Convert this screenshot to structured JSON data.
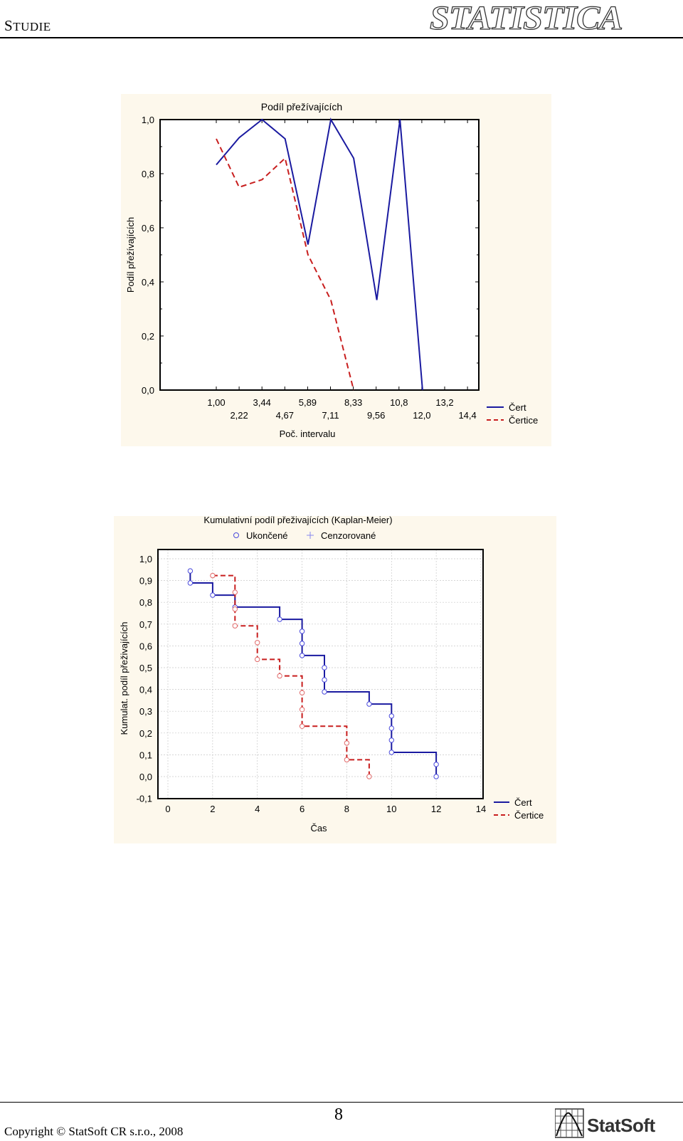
{
  "header": {
    "title_first": "S",
    "title_rest": "TUDIE",
    "logo_text": "STATISTICA"
  },
  "footer": {
    "page_number": "8",
    "copyright": "Copyright © StatSoft CR s.r.o., 2008",
    "logo_text": "StatSoft"
  },
  "colors": {
    "cert": "#1a1aa0",
    "certice": "#c81e1e",
    "panel_bg": "#fdf8ec"
  },
  "chart_data": [
    {
      "type": "line",
      "title": "Podíl přežívajících",
      "xlabel": "Poč. intervalu",
      "ylabel": "Podíl přežívajících",
      "x_tick_labels": [
        "1,00",
        "2,22",
        "3,44",
        "4,67",
        "5,89",
        "7,11",
        "8,33",
        "9,56",
        "10,8",
        "12,0",
        "13,2",
        "14,4"
      ],
      "y_tick_labels": [
        "1,0",
        "0,8",
        "0,6",
        "0,4",
        "0,2",
        "0,0"
      ],
      "ylim": [
        0,
        1.0
      ],
      "legend": "right",
      "series": [
        {
          "name": "Čert",
          "style": "solid",
          "x": [
            1.0,
            2.22,
            3.44,
            4.67,
            5.89,
            7.11,
            8.33,
            9.56,
            10.8,
            12.0,
            13.2,
            14.4
          ],
          "y": [
            0.833,
            0.933,
            1.0,
            0.929,
            0.538,
            1.0,
            0.857,
            0.333,
            1.0,
            0.0,
            null,
            null
          ]
        },
        {
          "name": "Čertice",
          "style": "dashed",
          "x": [
            1.0,
            2.22,
            3.44,
            4.67,
            5.89,
            7.11,
            8.33
          ],
          "y": [
            0.929,
            0.75,
            0.778,
            0.857,
            0.5,
            0.333,
            0.0
          ]
        }
      ]
    },
    {
      "type": "line",
      "title": "Kumulativní podíl přeživajících (Kaplan-Meier)",
      "marker_legend": [
        "Ukončené",
        "Cenzorované"
      ],
      "xlabel": "Čas",
      "ylabel": "Kumulat. podíl přeživajících",
      "x_tick_labels": [
        "0",
        "2",
        "4",
        "6",
        "8",
        "10",
        "12",
        "14"
      ],
      "y_tick_labels": [
        "1,0",
        "0,9",
        "0,8",
        "0,7",
        "0,6",
        "0,5",
        "0,4",
        "0,3",
        "0,2",
        "0,1",
        "0,0",
        "-0,1"
      ],
      "xlim": [
        0,
        14
      ],
      "ylim": [
        -0.1,
        1.0
      ],
      "grid": true,
      "legend": "right",
      "series": [
        {
          "name": "Čert",
          "style": "solid",
          "steps": [
            [
              1,
              0.944
            ],
            [
              1,
              0.889
            ],
            [
              2,
              0.889
            ],
            [
              2,
              0.833
            ],
            [
              3,
              0.833
            ],
            [
              3,
              0.778
            ],
            [
              5,
              0.778
            ],
            [
              5,
              0.722
            ],
            [
              6,
              0.722
            ],
            [
              6,
              0.556
            ],
            [
              7,
              0.556
            ],
            [
              7,
              0.389
            ],
            [
              9,
              0.389
            ],
            [
              9,
              0.333
            ],
            [
              10,
              0.333
            ],
            [
              10,
              0.111
            ],
            [
              12,
              0.111
            ],
            [
              12,
              0.0
            ]
          ],
          "markers": [
            [
              1,
              0.944
            ],
            [
              1,
              0.889
            ],
            [
              2,
              0.833
            ],
            [
              3,
              0.778
            ],
            [
              5,
              0.722
            ],
            [
              6,
              0.667
            ],
            [
              6,
              0.611
            ],
            [
              6,
              0.556
            ],
            [
              7,
              0.5
            ],
            [
              7,
              0.444
            ],
            [
              7,
              0.389
            ],
            [
              9,
              0.333
            ],
            [
              10,
              0.278
            ],
            [
              10,
              0.222
            ],
            [
              10,
              0.167
            ],
            [
              10,
              0.111
            ],
            [
              12,
              0.056
            ],
            [
              12,
              0.0
            ]
          ]
        },
        {
          "name": "Čertice",
          "style": "dashed",
          "steps": [
            [
              2,
              0.923
            ],
            [
              3,
              0.923
            ],
            [
              3,
              0.692
            ],
            [
              4,
              0.692
            ],
            [
              4,
              0.538
            ],
            [
              5,
              0.538
            ],
            [
              5,
              0.462
            ],
            [
              6,
              0.462
            ],
            [
              6,
              0.231
            ],
            [
              8,
              0.231
            ],
            [
              8,
              0.077
            ],
            [
              9,
              0.077
            ],
            [
              9,
              0.0
            ]
          ],
          "markers": [
            [
              2,
              0.923
            ],
            [
              3,
              0.846
            ],
            [
              3,
              0.769
            ],
            [
              3,
              0.692
            ],
            [
              4,
              0.615
            ],
            [
              4,
              0.538
            ],
            [
              5,
              0.462
            ],
            [
              6,
              0.385
            ],
            [
              6,
              0.308
            ],
            [
              6,
              0.231
            ],
            [
              8,
              0.154
            ],
            [
              8,
              0.077
            ],
            [
              9,
              0.0
            ]
          ]
        }
      ]
    }
  ]
}
